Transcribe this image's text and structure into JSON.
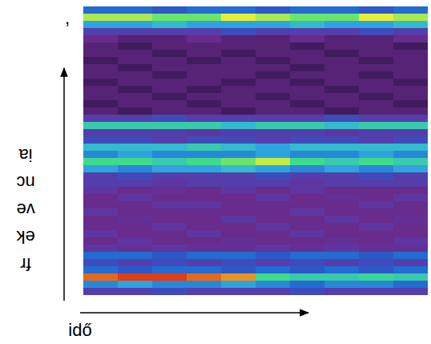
{
  "chart_data": {
    "type": "heatmap",
    "x_label": "idő",
    "y_label": "frekvencia",
    "annotations": [
      ","
    ],
    "tick_labels": false,
    "zlim": [
      0,
      10
    ],
    "cells": [
      [
        3,
        3,
        3.5,
        3,
        3,
        3,
        3.5,
        3,
        3,
        3
      ],
      [
        5,
        5.5,
        5,
        5,
        5.5,
        5,
        4.5,
        5,
        5,
        4.5
      ],
      [
        9.5,
        9.8,
        9.8,
        9.5,
        9.2,
        7,
        6.5,
        6.5,
        6.8,
        6.5
      ],
      [
        4.5,
        4,
        4.5,
        4.5,
        4,
        4.5,
        4,
        4.5,
        4,
        4.5
      ],
      [
        3.5,
        3,
        3.5,
        3,
        3.5,
        3,
        3.5,
        3,
        3.5,
        3
      ],
      [
        4.5,
        4.5,
        4,
        4.5,
        4.5,
        4,
        4.5,
        4.5,
        4,
        4.5
      ],
      [
        2.5,
        2,
        2.5,
        2,
        2,
        2.5,
        2,
        2.5,
        2,
        2
      ],
      [
        1.5,
        2.5,
        1.5,
        1.5,
        2,
        1.5,
        1.5,
        2,
        1.5,
        2.5
      ],
      [
        2.5,
        1.5,
        1.5,
        2.5,
        1.5,
        1.5,
        2.5,
        1.5,
        1.5,
        1.5
      ],
      [
        1.5,
        1.5,
        2.5,
        1.5,
        1.5,
        2.5,
        1.5,
        1.5,
        2.5,
        1.5
      ],
      [
        1.5,
        2,
        1.5,
        1.5,
        2.5,
        1.5,
        1.5,
        2.5,
        1.5,
        2
      ],
      [
        2.5,
        1.5,
        1.5,
        1.5,
        1.5,
        1.5,
        2.5,
        1.5,
        1.5,
        1.5
      ],
      [
        1.5,
        1.5,
        2.5,
        2.5,
        1.5,
        1.5,
        1.5,
        1.5,
        2.5,
        1.5
      ],
      [
        1.5,
        2.5,
        1.5,
        1.5,
        1.5,
        2.5,
        1.5,
        2,
        1.5,
        2.5
      ],
      [
        2.5,
        1.5,
        2,
        1.5,
        2.5,
        1.5,
        2.5,
        1.5,
        1.5,
        1.5
      ],
      [
        3,
        3,
        2.5,
        3,
        3,
        3,
        2.5,
        3,
        3,
        3
      ],
      [
        3,
        3.5,
        3,
        3,
        3,
        3.5,
        3,
        3,
        3.5,
        3
      ],
      [
        5.5,
        5,
        5.5,
        5.5,
        6,
        5.5,
        5,
        5.5,
        5,
        5.5
      ],
      [
        7,
        7,
        6.5,
        7,
        7.5,
        8.2,
        7,
        6.5,
        7,
        6.5
      ],
      [
        5,
        5.5,
        5,
        5,
        5,
        5.5,
        5,
        5,
        5.5,
        5
      ],
      [
        6,
        6,
        6,
        6.5,
        6,
        5.5,
        6,
        6,
        6,
        6
      ],
      [
        3.5,
        3.5,
        3,
        3.5,
        3.5,
        3,
        3.5,
        3.5,
        3,
        3.5
      ],
      [
        3,
        3,
        3,
        2.5,
        3,
        3,
        3,
        2.5,
        3,
        3
      ],
      [
        6.5,
        6.5,
        6.5,
        6.5,
        6,
        6.5,
        6.5,
        6,
        6.5,
        6.5
      ],
      [
        3,
        3,
        3.5,
        3,
        3,
        3,
        3,
        3.5,
        3,
        3
      ],
      [
        1,
        0.5,
        1,
        1,
        0.5,
        1,
        1,
        0.5,
        1,
        1
      ],
      [
        0.5,
        1,
        1,
        0.5,
        1,
        1,
        0.5,
        1,
        1,
        0.5
      ],
      [
        1,
        1,
        0.5,
        1,
        1,
        0.5,
        1,
        1,
        0.5,
        1
      ],
      [
        1,
        0.5,
        1,
        0.5,
        1,
        1,
        1,
        0.5,
        1,
        1
      ],
      [
        0.5,
        1,
        1,
        1,
        0.5,
        1,
        0.5,
        1,
        1,
        0.5
      ],
      [
        1,
        1,
        0.5,
        1,
        1,
        0.5,
        1,
        1,
        0.5,
        1
      ],
      [
        1,
        0.5,
        1,
        1,
        1,
        1,
        0.5,
        1,
        1,
        1
      ],
      [
        0.5,
        1,
        1,
        0.5,
        1,
        0.5,
        1,
        1,
        0.5,
        1
      ],
      [
        1,
        1,
        0.5,
        1,
        0.5,
        1,
        1,
        0.5,
        1,
        1
      ],
      [
        1,
        0.5,
        1,
        1,
        1,
        1,
        0.5,
        1,
        1,
        0.5
      ],
      [
        1.5,
        1,
        1,
        1.5,
        1,
        1,
        1.5,
        1,
        1,
        1.5
      ],
      [
        3,
        3,
        3,
        3,
        3.5,
        3,
        3,
        3,
        3.5,
        3
      ],
      [
        5.5,
        5.5,
        6,
        5.5,
        5.5,
        5.5,
        6,
        5.5,
        5.5,
        6
      ],
      [
        8,
        8,
        7.5,
        7.5,
        8.5,
        8,
        7.5,
        7.5,
        8.5,
        8
      ],
      [
        4.5,
        4.5,
        4,
        4.5,
        4.5,
        4,
        4.5,
        4.5,
        4,
        4.5
      ]
    ]
  }
}
